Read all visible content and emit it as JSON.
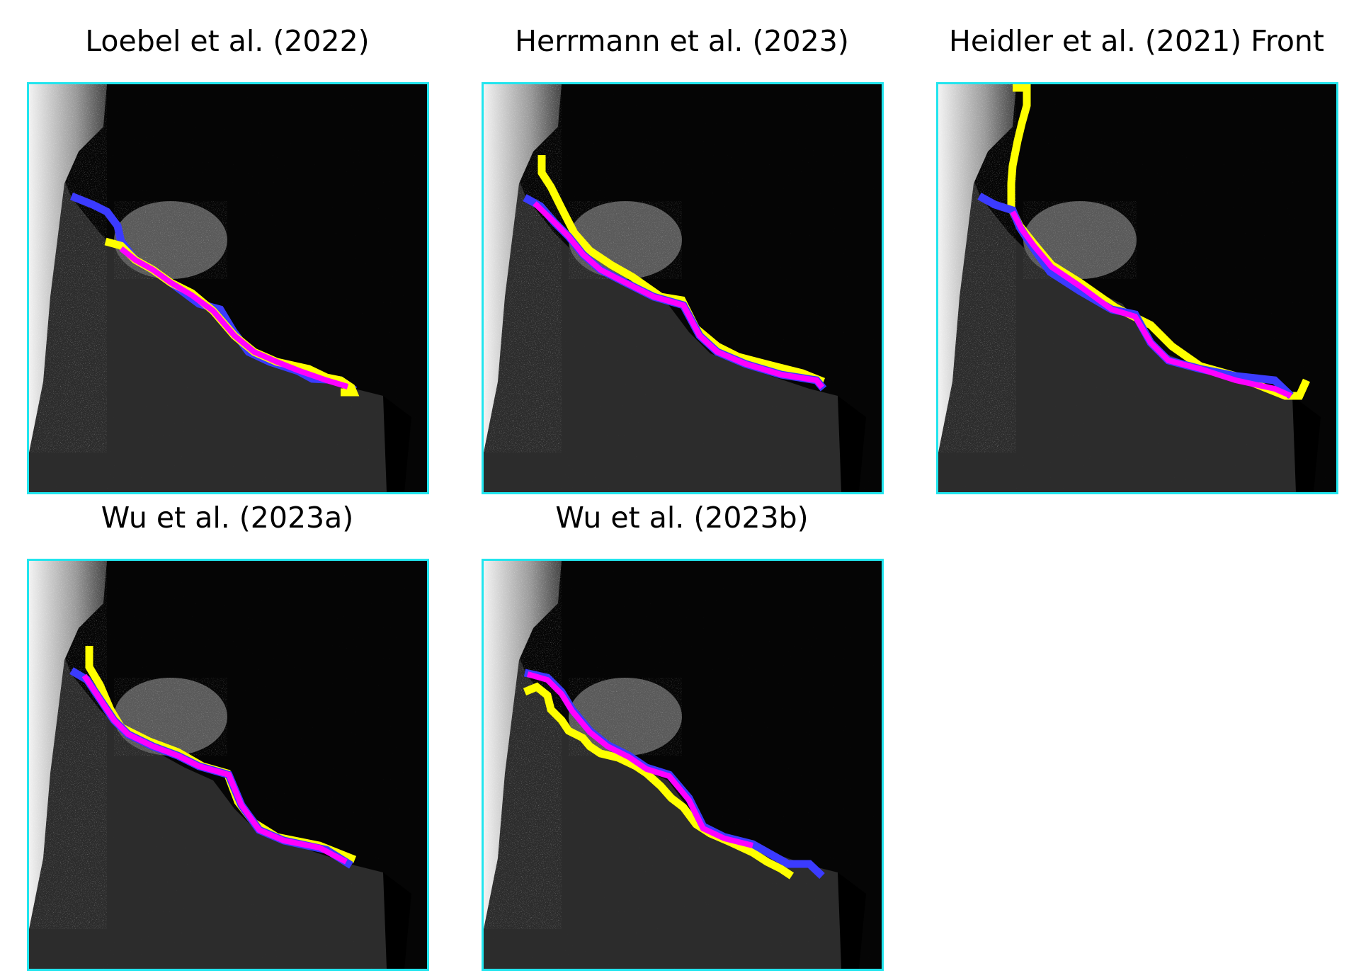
{
  "figure": {
    "panels": [
      {
        "title": "Loebel et al. (2022)"
      },
      {
        "title": "Herrmann et al. (2023)"
      },
      {
        "title": "Heidler et al. (2021) Front"
      },
      {
        "title": "Wu et al. (2023a)"
      },
      {
        "title": "Wu et al. (2023b)"
      }
    ],
    "colors": {
      "frame": "#22e5ee",
      "ground_truth": "#3b3bff",
      "prediction": "#ffff00",
      "overlap": "#ff00ff",
      "background": "#050505"
    }
  }
}
